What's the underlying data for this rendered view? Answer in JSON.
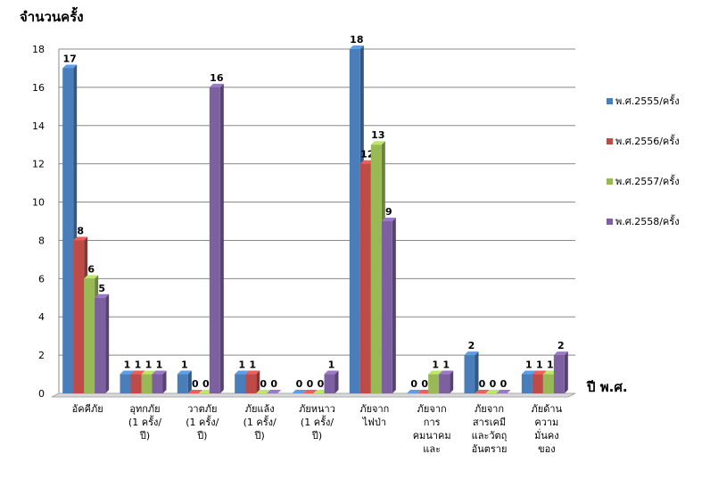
{
  "chart_data": {
    "type": "bar",
    "ylabel": "จำนวนครั้ง",
    "xlabel": "ปี พ.ศ.",
    "ylim": [
      0,
      18
    ],
    "yticks": [
      0,
      2,
      4,
      6,
      8,
      10,
      12,
      14,
      16,
      18
    ],
    "grid": true,
    "legend_position": "right",
    "categories": [
      [
        "อัคคีภัย"
      ],
      [
        "อุทกภัย",
        "(1 ครั้ง/",
        "ปี)"
      ],
      [
        "วาตภัย",
        "(1 ครั้ง/",
        "ปี)"
      ],
      [
        "ภัยแล้ง",
        "(1 ครั้ง/",
        "ปี)"
      ],
      [
        "ภัยหนาว",
        "(1 ครั้ง/",
        "ปี)"
      ],
      [
        "ภัยจาก",
        "ไฟป่า"
      ],
      [
        "ภัยจาก",
        "การ",
        "คมนาคม",
        "และ"
      ],
      [
        "ภัยจาก",
        "สารเคมี",
        "และวัตถุ",
        "อันตราย"
      ],
      [
        "ภัยด้าน",
        "ความ",
        "มั่นคง",
        "ของ"
      ]
    ],
    "series": [
      {
        "name": "พ.ศ.2555/ครั้ง",
        "color": "#4a7ebb",
        "values": [
          17,
          1,
          1,
          1,
          0,
          18,
          0,
          2,
          1
        ]
      },
      {
        "name": "พ.ศ.2556/ครั้ง",
        "color": "#be4b48",
        "values": [
          8,
          1,
          0,
          1,
          0,
          12,
          0,
          0,
          1
        ]
      },
      {
        "name": "พ.ศ.2557/ครั้ง",
        "color": "#98b954",
        "values": [
          6,
          1,
          0,
          0,
          0,
          13,
          1,
          0,
          1
        ]
      },
      {
        "name": "พ.ศ.2558/ครั้ง",
        "color": "#7d60a0",
        "values": [
          5,
          1,
          16,
          0,
          1,
          9,
          1,
          0,
          2
        ]
      }
    ]
  }
}
